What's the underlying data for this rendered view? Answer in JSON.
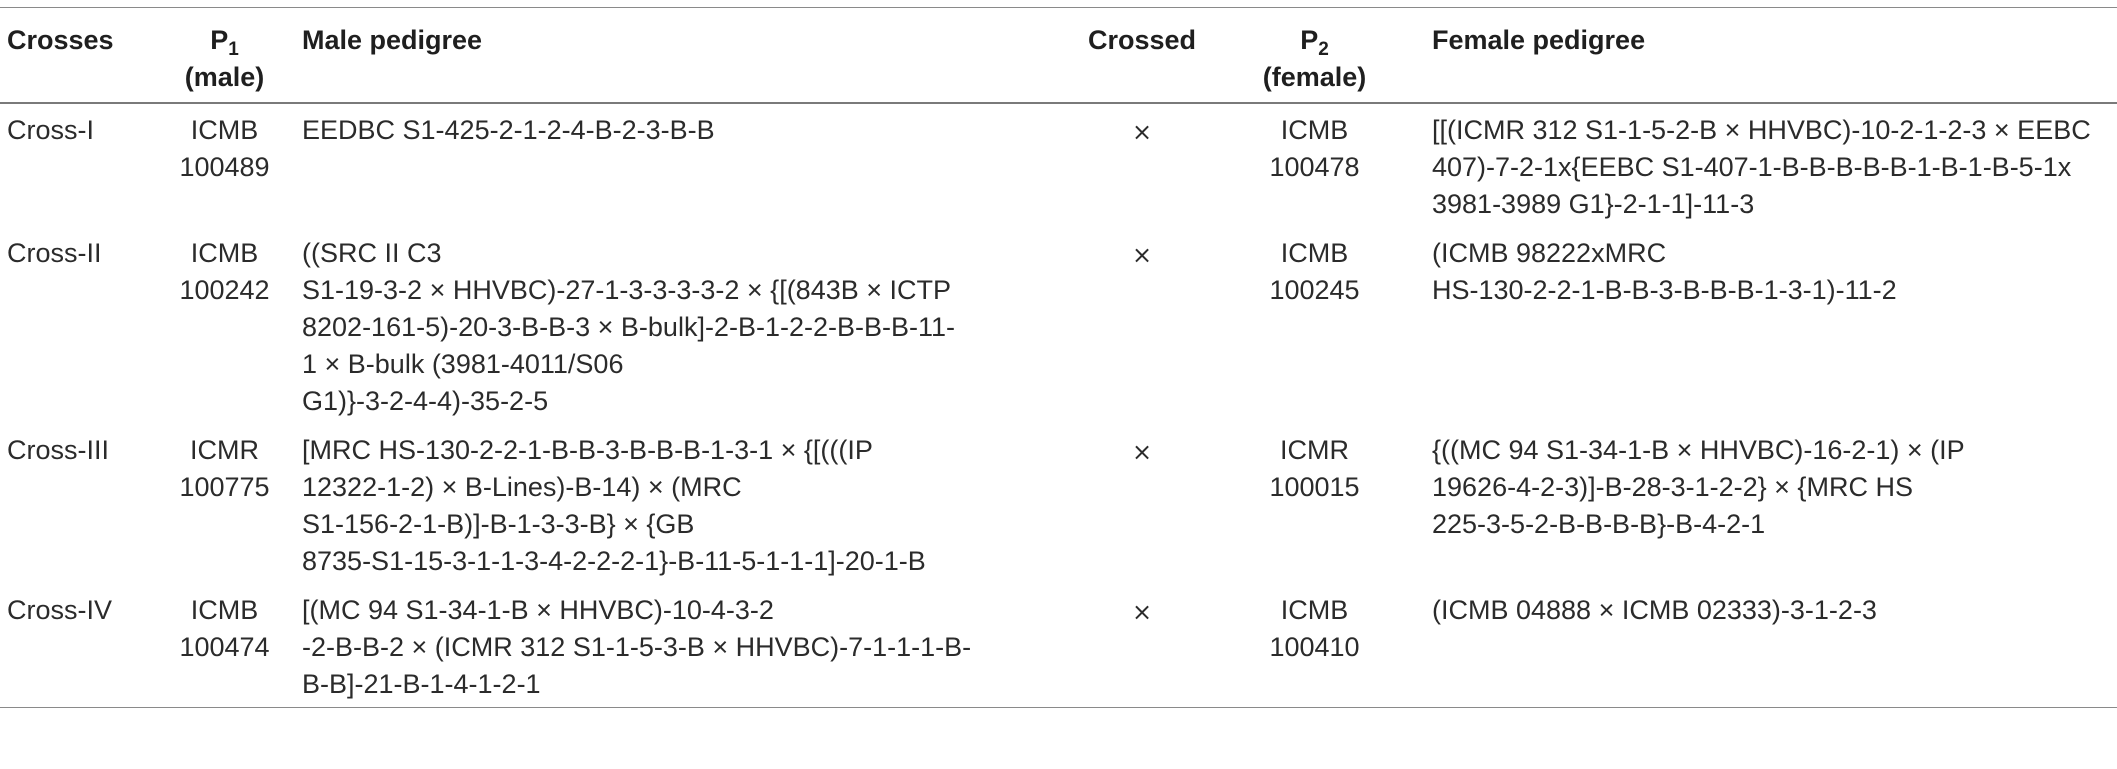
{
  "table": {
    "headers": {
      "crosses": "Crosses",
      "p1_main": "P",
      "p1_sub": "1",
      "p1_note": "(male)",
      "male_pedigree": "Male pedigree",
      "crossed": "Crossed",
      "p2_main": "P",
      "p2_sub": "2",
      "p2_note": "(female)",
      "female_pedigree": "Female pedigree"
    },
    "rows": [
      {
        "cross": "Cross-I",
        "p1": "ICMB\n100489",
        "male_pedigree": "EEDBC S1-425-2-1-2-4-B-2-3-B-B",
        "crossed": "×",
        "p2": "ICMB\n100478",
        "female_pedigree": "[[(ICMR 312 S1-1-5-2-B × HHVBC)-10-2-1-2-3 × EEBC\n407)-7-2-1x{EEBC S1-407-1-B-B-B-B-B-1-B-1-B-5-1x\n3981-3989 G1}-2-1-1]-11-3"
      },
      {
        "cross": "Cross-II",
        "p1": "ICMB\n100242",
        "male_pedigree": "((SRC II C3\nS1-19-3-2 × HHVBC)-27-1-3-3-3-3-2 × {[(843B × ICTP\n8202-161-5)-20-3-B-B-3 × B-bulk]-2-B-1-2-2-B-B-B-11-\n1 × B-bulk (3981-4011/S06\nG1)}-3-2-4-4)-35-2-5",
        "crossed": "×",
        "p2": "ICMB\n100245",
        "female_pedigree": "(ICMB 98222xMRC\nHS-130-2-2-1-B-B-3-B-B-B-1-3-1)-11-2"
      },
      {
        "cross": "Cross-III",
        "p1": "ICMR\n100775",
        "male_pedigree": "[MRC HS-130-2-2-1-B-B-3-B-B-B-1-3-1 × {[(((IP\n12322-1-2) × B-Lines)-B-14) × (MRC\nS1-156-2-1-B)]-B-1-3-3-B} × {GB\n8735-S1-15-3-1-1-3-4-2-2-2-1}-B-11-5-1-1-1]-20-1-B",
        "crossed": "×",
        "p2": "ICMR\n100015",
        "female_pedigree": "{((MC 94 S1-34-1-B × HHVBC)-16-2-1) × (IP\n19626-4-2-3)]-B-28-3-1-2-2} × {MRC HS\n225-3-5-2-B-B-B-B}-B-4-2-1"
      },
      {
        "cross": "Cross-IV",
        "p1": "ICMB\n100474",
        "male_pedigree": "[(MC 94 S1-34-1-B × HHVBC)-10-4-3-2\n-2-B-B-2 × (ICMR 312 S1-1-5-3-B ×  HHVBC)-7-1-1-1-B-\nB-B]-21-B-1-4-1-2-1",
        "crossed": "×",
        "p2": "ICMB\n100410",
        "female_pedigree": "(ICMB 04888 × ICMB 02333)-3-1-2-3"
      }
    ]
  }
}
